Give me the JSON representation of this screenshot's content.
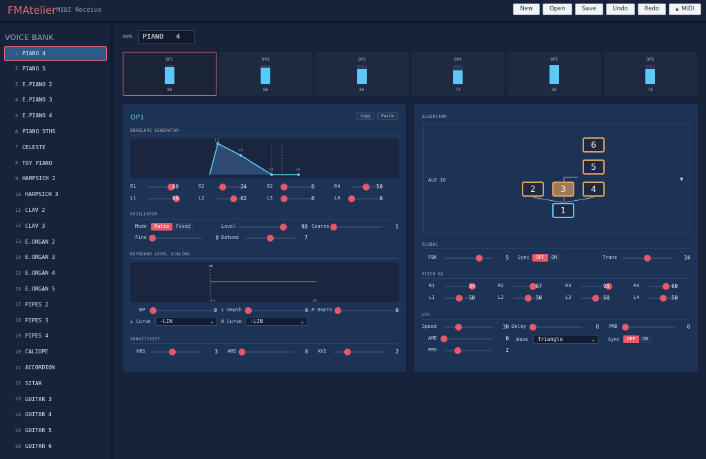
{
  "app": {
    "title": "FMAtelier",
    "subtitle": "MIDI Receive"
  },
  "toolbar": {
    "new": "New",
    "open": "Open",
    "save": "Save",
    "undo": "Undo",
    "redo": "Redo",
    "midi": "MIDI"
  },
  "sidebar": {
    "title": "VOICE BANK",
    "items": [
      {
        "num": "1",
        "name": "PIANO 4"
      },
      {
        "num": "2",
        "name": "PIANO 5"
      },
      {
        "num": "3",
        "name": "E.PIANO 2"
      },
      {
        "num": "4",
        "name": "E.PIANO 3"
      },
      {
        "num": "5",
        "name": "E.PIANO 4"
      },
      {
        "num": "6",
        "name": "PIANO 5THS"
      },
      {
        "num": "7",
        "name": "CELESTE"
      },
      {
        "num": "8",
        "name": "TOY PIANO"
      },
      {
        "num": "9",
        "name": "HARPSICH 2"
      },
      {
        "num": "10",
        "name": "HARPSICH 3"
      },
      {
        "num": "11",
        "name": "CLAV 2"
      },
      {
        "num": "12",
        "name": "CLAV 3"
      },
      {
        "num": "13",
        "name": "E.ORGAN 2"
      },
      {
        "num": "14",
        "name": "E.ORGAN 3"
      },
      {
        "num": "15",
        "name": "E.ORGAN 4"
      },
      {
        "num": "16",
        "name": "E.ORGAN 5"
      },
      {
        "num": "17",
        "name": "PIPES 2"
      },
      {
        "num": "18",
        "name": "PIPES 3"
      },
      {
        "num": "19",
        "name": "PIPES 4"
      },
      {
        "num": "20",
        "name": "CALIOPE"
      },
      {
        "num": "21",
        "name": "ACCORDION"
      },
      {
        "num": "22",
        "name": "SITAR"
      },
      {
        "num": "23",
        "name": "GUITAR 3"
      },
      {
        "num": "24",
        "name": "GUITAR 4"
      },
      {
        "num": "25",
        "name": "GUITAR 5"
      },
      {
        "num": "26",
        "name": "GUITAR 6"
      }
    ]
  },
  "voice": {
    "name_label": "NAME",
    "name": "PIANO   4"
  },
  "operators": [
    {
      "label": "OP1",
      "level": 90
    },
    {
      "label": "OP2",
      "level": 86
    },
    {
      "label": "OP3",
      "level": 80
    },
    {
      "label": "OP4",
      "level": 72
    },
    {
      "label": "OP5",
      "level": 99
    },
    {
      "label": "OP6",
      "level": 78
    }
  ],
  "op_panel": {
    "title": "OP1",
    "copy": "Copy",
    "paste": "Paste",
    "env_title": "ENVELOPE GENERATOR",
    "env_graph_labels": {
      "l1": "L1",
      "l2": "L2",
      "l3": "L3",
      "l4": "L4"
    },
    "rates": [
      {
        "label": "R1",
        "value": 80
      },
      {
        "label": "R2",
        "value": 24
      },
      {
        "label": "R3",
        "value": 0
      },
      {
        "label": "R4",
        "value": 50
      }
    ],
    "levels": [
      {
        "label": "L1",
        "value": 99
      },
      {
        "label": "L2",
        "value": 62
      },
      {
        "label": "L3",
        "value": 0
      },
      {
        "label": "L4",
        "value": 0
      }
    ],
    "osc_title": "OSCILLATOR",
    "mode_label": "Mode",
    "mode_ratio": "Ratio",
    "mode_fixed": "Fixed",
    "level_label": "Level",
    "level_value": 90,
    "coarse_label": "Coarse",
    "coarse_value": 1,
    "fine_label": "Fine",
    "fine_value": 0,
    "detune_label": "Detune",
    "detune_value": 7,
    "kls_title": "KEYBOARD LEVEL SCALING",
    "kls_ab": "A0",
    "kls_left": "A-1",
    "kls_right": "C8",
    "bp_label": "BP",
    "bp_value": 0,
    "ldepth_label": "L Depth",
    "ldepth_value": 0,
    "rdepth_label": "R Depth",
    "rdepth_value": 0,
    "lcurve_label": "L Curve",
    "lcurve_value": "-LIN",
    "rcurve_label": "R Curve",
    "rcurve_value": "-LIN",
    "sens_title": "SENSITIVITY",
    "krs_label": "KRS",
    "krs_value": 3,
    "ams_label": "AMS",
    "ams_value": 0,
    "kvs_label": "KVS",
    "kvs_value": 2
  },
  "right_panel": {
    "alg_title": "ALGORITHM",
    "alg_value": "ALG 18",
    "alg_ops": {
      "op1": "1",
      "op2": "2",
      "op3": "3",
      "op4": "4",
      "op5": "5",
      "op6": "6"
    },
    "global_title": "GLOBAL",
    "fbk_label": "FBK",
    "fbk_value": 5,
    "sync_label": "Sync",
    "off": "OFF",
    "on": "ON",
    "trans_label": "Trans",
    "trans_value": 24,
    "peg_title": "PITCH EG",
    "peg_rates": [
      {
        "label": "R1",
        "value": 94
      },
      {
        "label": "R2",
        "value": 67
      },
      {
        "label": "R3",
        "value": 95
      },
      {
        "label": "R4",
        "value": 60
      }
    ],
    "peg_levels": [
      {
        "label": "L1",
        "value": 50
      },
      {
        "label": "L2",
        "value": 50
      },
      {
        "label": "L3",
        "value": 50
      },
      {
        "label": "L4",
        "value": 50
      }
    ],
    "lfo_title": "LFO",
    "speed_label": "Speed",
    "speed_value": 30,
    "delay_label": "Delay",
    "delay_value": 0,
    "pmd_label": "PMD",
    "pmd_value": 0,
    "amd_label": "AMD",
    "amd_value": 0,
    "wave_label": "Wave",
    "wave_value": "Triangle",
    "lsync_label": "Sync",
    "pms_label": "PMS",
    "pms_value": 2
  },
  "colors": {
    "accent": "#e5596b",
    "cyan": "#5cc8f5",
    "modulator": "#e0a060"
  }
}
